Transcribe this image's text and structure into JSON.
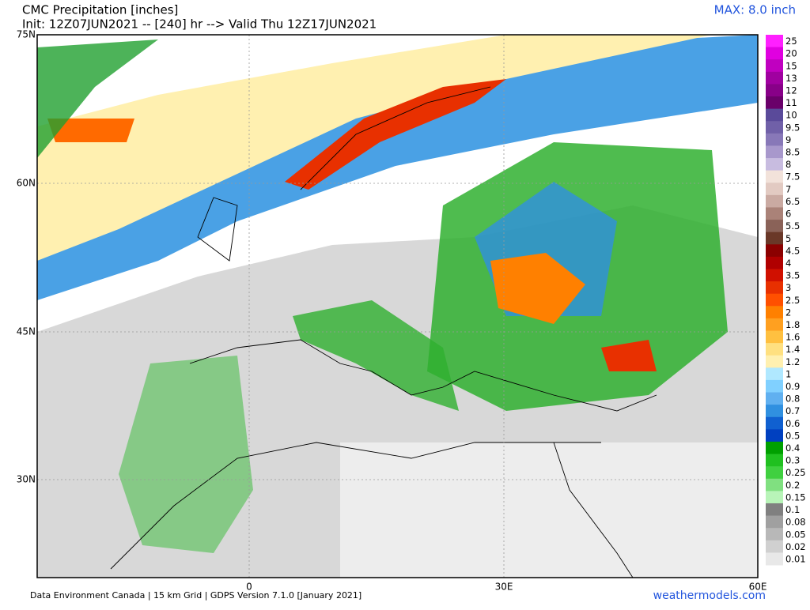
{
  "header": {
    "title": "CMC Precipitation [inches]",
    "subtitle": "Init: 12Z07JUN2021 -- [240] hr --> Valid Thu 12Z17JUN2021",
    "max": "MAX: 8.0 inch"
  },
  "map": {
    "lat_labels": [
      "75N",
      "60N",
      "45N",
      "30N"
    ],
    "lon_labels": [
      "0",
      "30E",
      "60E"
    ]
  },
  "colorbar": [
    {
      "label": "25",
      "color": "#ff20ff"
    },
    {
      "label": "20",
      "color": "#e000e0"
    },
    {
      "label": "15",
      "color": "#c000c0"
    },
    {
      "label": "13",
      "color": "#a000a0"
    },
    {
      "label": "12",
      "color": "#880088"
    },
    {
      "label": "11",
      "color": "#6a006a"
    },
    {
      "label": "10",
      "color": "#5a4a9a"
    },
    {
      "label": "9.5",
      "color": "#7060a8"
    },
    {
      "label": "9",
      "color": "#8878b8"
    },
    {
      "label": "8.5",
      "color": "#a898cc"
    },
    {
      "label": "8",
      "color": "#c8bce0"
    },
    {
      "label": "7.5",
      "color": "#f2e2da"
    },
    {
      "label": "7",
      "color": "#e2cac2"
    },
    {
      "label": "6.5",
      "color": "#caaaa2"
    },
    {
      "label": "6",
      "color": "#aa8278"
    },
    {
      "label": "5.5",
      "color": "#8a6258"
    },
    {
      "label": "5",
      "color": "#6a3828"
    },
    {
      "label": "4.5",
      "color": "#8b0000"
    },
    {
      "label": "4",
      "color": "#b00000"
    },
    {
      "label": "3.5",
      "color": "#d01000"
    },
    {
      "label": "3",
      "color": "#e83000"
    },
    {
      "label": "2.5",
      "color": "#ff5000"
    },
    {
      "label": "2",
      "color": "#ff8000"
    },
    {
      "label": "1.8",
      "color": "#ffa020"
    },
    {
      "label": "1.6",
      "color": "#ffc040"
    },
    {
      "label": "1.4",
      "color": "#ffe080"
    },
    {
      "label": "1.2",
      "color": "#fff0b0"
    },
    {
      "label": "1",
      "color": "#b0e8ff"
    },
    {
      "label": "0.9",
      "color": "#80d0ff"
    },
    {
      "label": "0.8",
      "color": "#60b0f0"
    },
    {
      "label": "0.7",
      "color": "#3090e0"
    },
    {
      "label": "0.6",
      "color": "#1060d0"
    },
    {
      "label": "0.5",
      "color": "#0040c0"
    },
    {
      "label": "0.4",
      "color": "#00a000"
    },
    {
      "label": "0.3",
      "color": "#20c020"
    },
    {
      "label": "0.25",
      "color": "#40d040"
    },
    {
      "label": "0.2",
      "color": "#80e080"
    },
    {
      "label": "0.15",
      "color": "#b8f4b8"
    },
    {
      "label": "0.1",
      "color": "#808080"
    },
    {
      "label": "0.08",
      "color": "#a0a0a0"
    },
    {
      "label": "0.05",
      "color": "#b8b8b8"
    },
    {
      "label": "0.02",
      "color": "#d0d0d0"
    },
    {
      "label": "0.01",
      "color": "#e8e8e8"
    }
  ],
  "footer": {
    "credit": "Data Environment Canada | 15 km Grid | GDPS Version 7.1.0 [January 2021]",
    "site": "weathermodels.com"
  }
}
